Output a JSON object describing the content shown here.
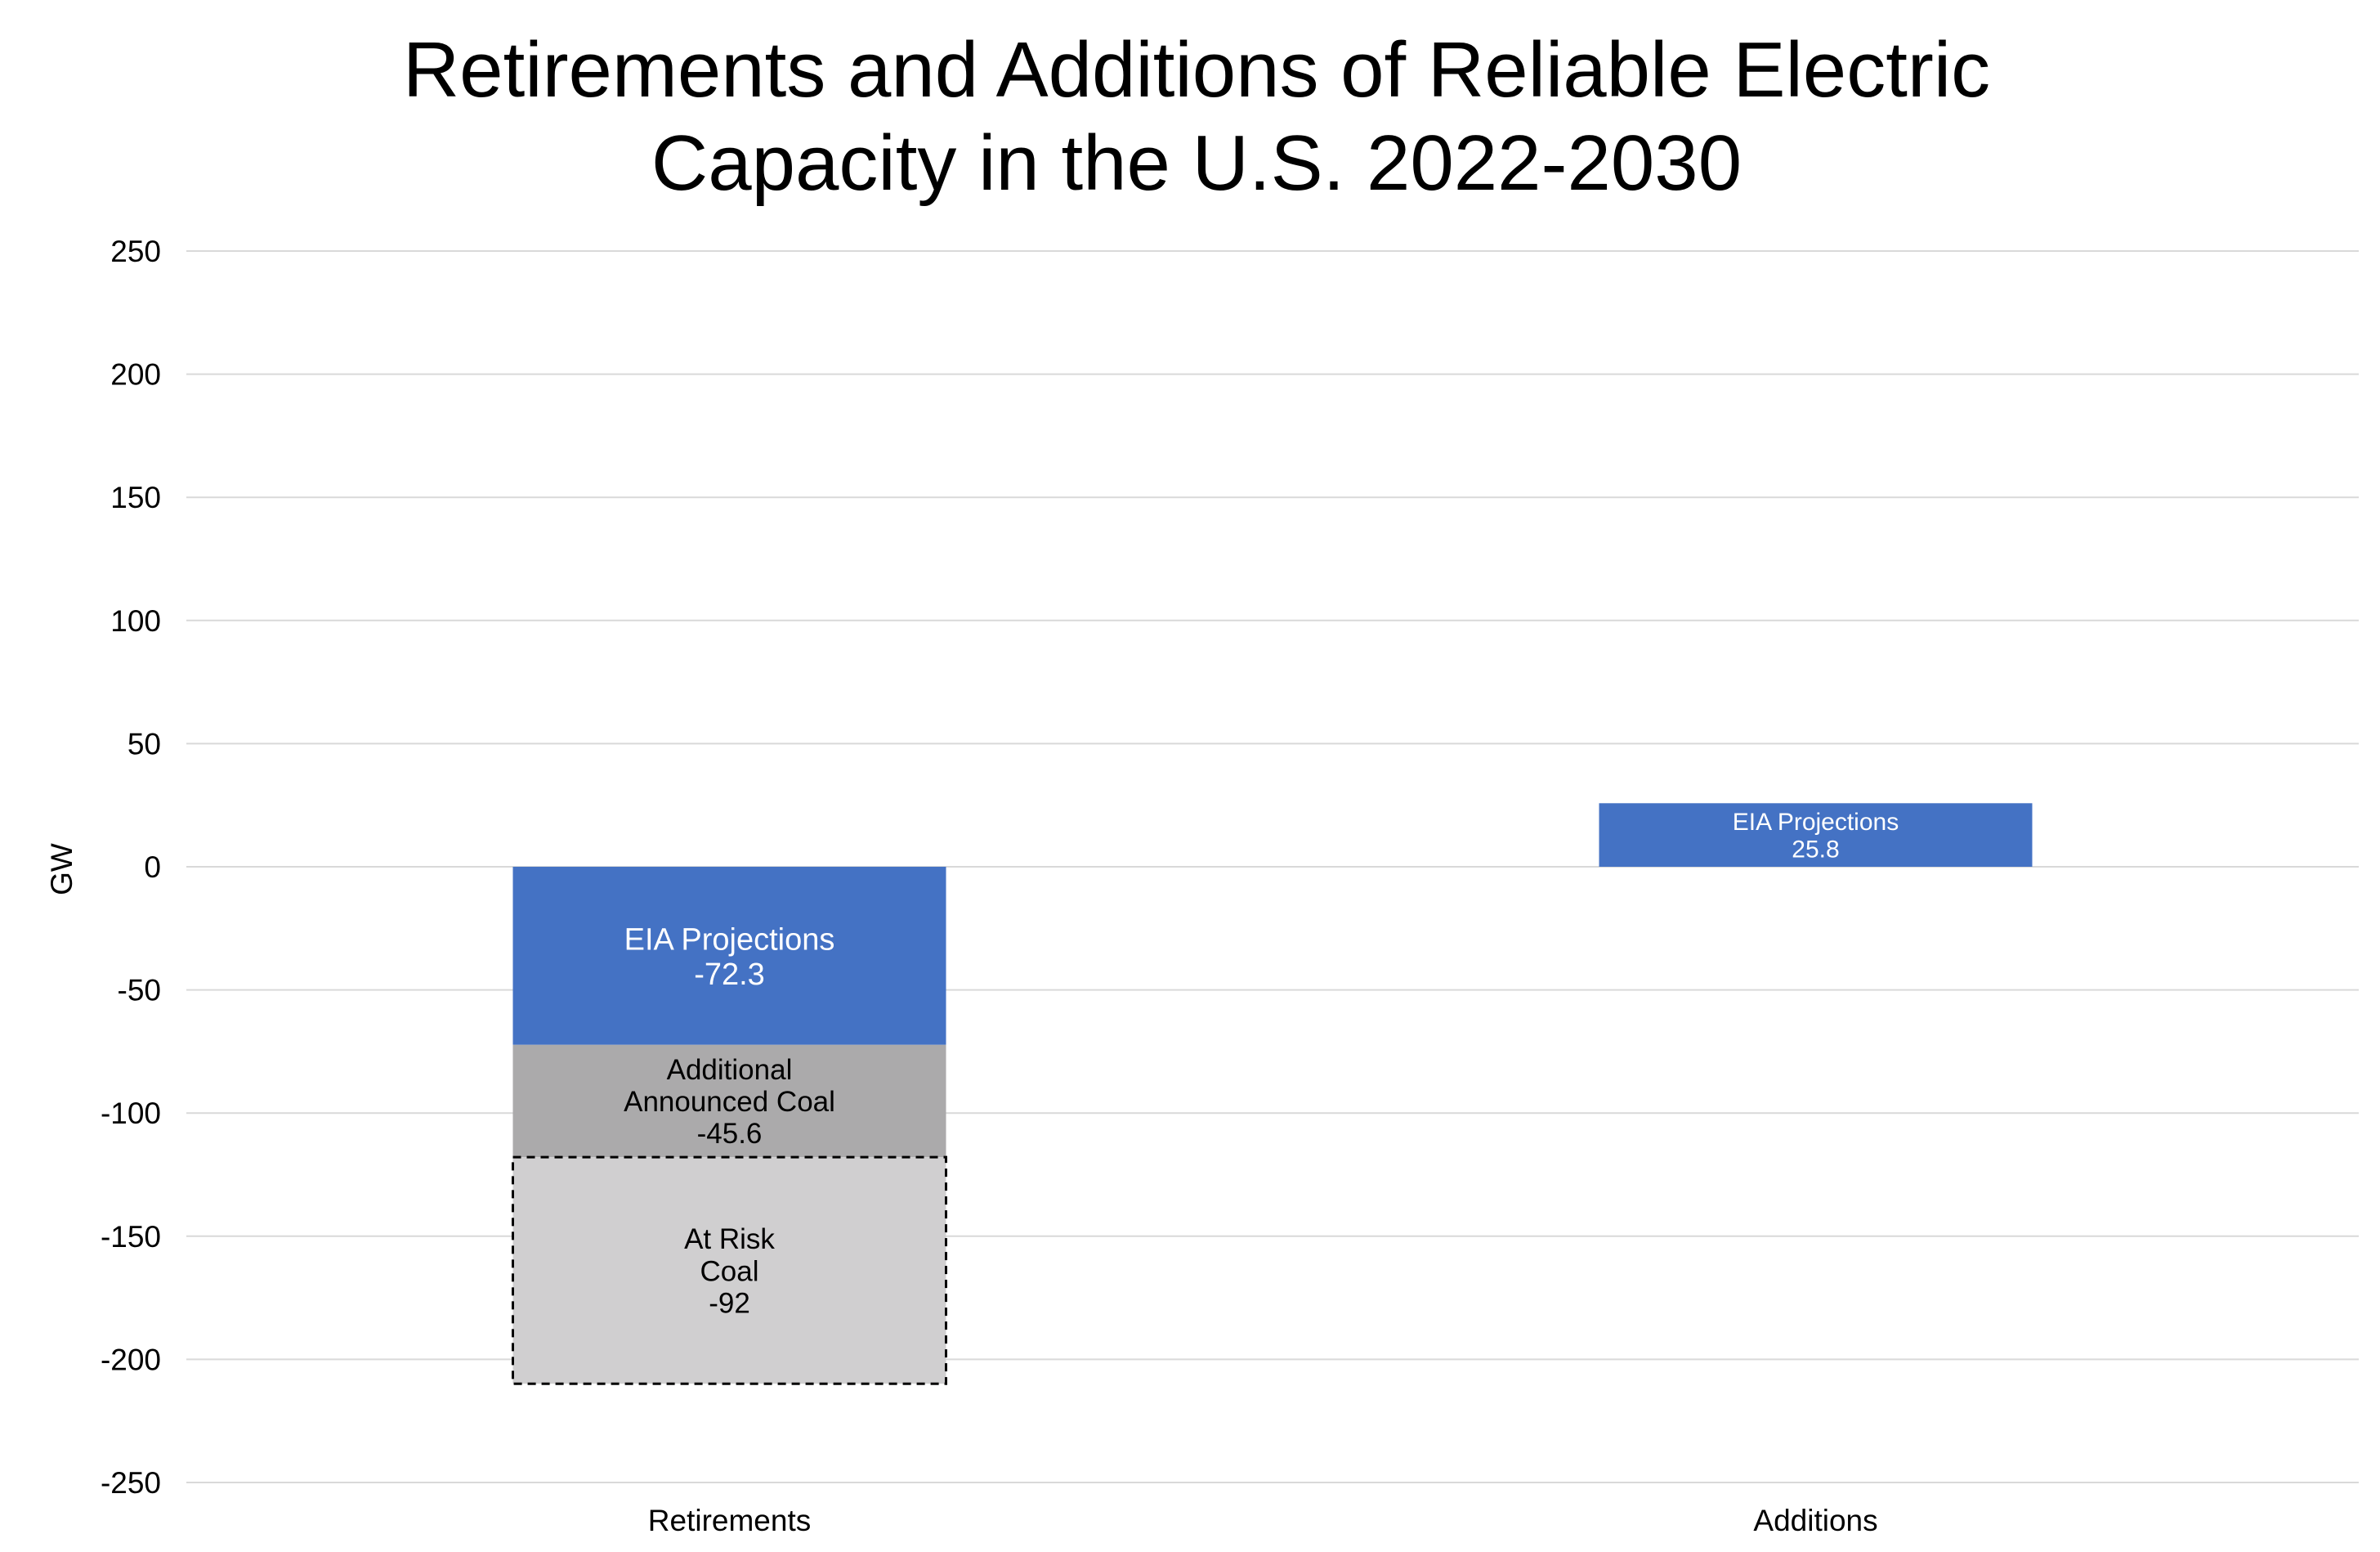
{
  "chart_data": {
    "type": "bar",
    "stacked": true,
    "title_lines": [
      "Retirements and Additions of Reliable Electric",
      "Capacity in the U.S. 2022-2030"
    ],
    "xlabel": "",
    "ylabel": "GW",
    "ylim": [
      -250,
      250
    ],
    "yticks": [
      250,
      200,
      150,
      100,
      50,
      0,
      -50,
      -100,
      -150,
      -200,
      -250
    ],
    "categories": [
      "Retirements",
      "Additions"
    ],
    "grid": true,
    "legend": "none",
    "segments": [
      {
        "category": "Retirements",
        "name": "EIA Projections",
        "value": -72.3,
        "label_lines": [
          "EIA Projections",
          "-72.3"
        ],
        "color": "#4472C4",
        "label_color": "#ffffff",
        "dashed_border": false
      },
      {
        "category": "Retirements",
        "name": "Additional Announced Coal",
        "value": -45.6,
        "label_lines": [
          "Additional",
          "Announced Coal",
          "-45.6"
        ],
        "color": "#ABAAAB",
        "label_color": "#000000",
        "dashed_border": false
      },
      {
        "category": "Retirements",
        "name": "At Risk Coal",
        "value": -92,
        "label_lines": [
          "At Risk",
          "Coal",
          "-92"
        ],
        "color": "#D0CFD0",
        "label_color": "#000000",
        "dashed_border": true
      },
      {
        "category": "Additions",
        "name": "EIA Projections",
        "value": 25.8,
        "label_lines": [
          "EIA Projections",
          "25.8"
        ],
        "color": "#4472C4",
        "label_color": "#ffffff",
        "dashed_border": false
      }
    ],
    "colors": {
      "grid": "#D9D9D9",
      "zero_line": "#D9D9D9"
    }
  }
}
